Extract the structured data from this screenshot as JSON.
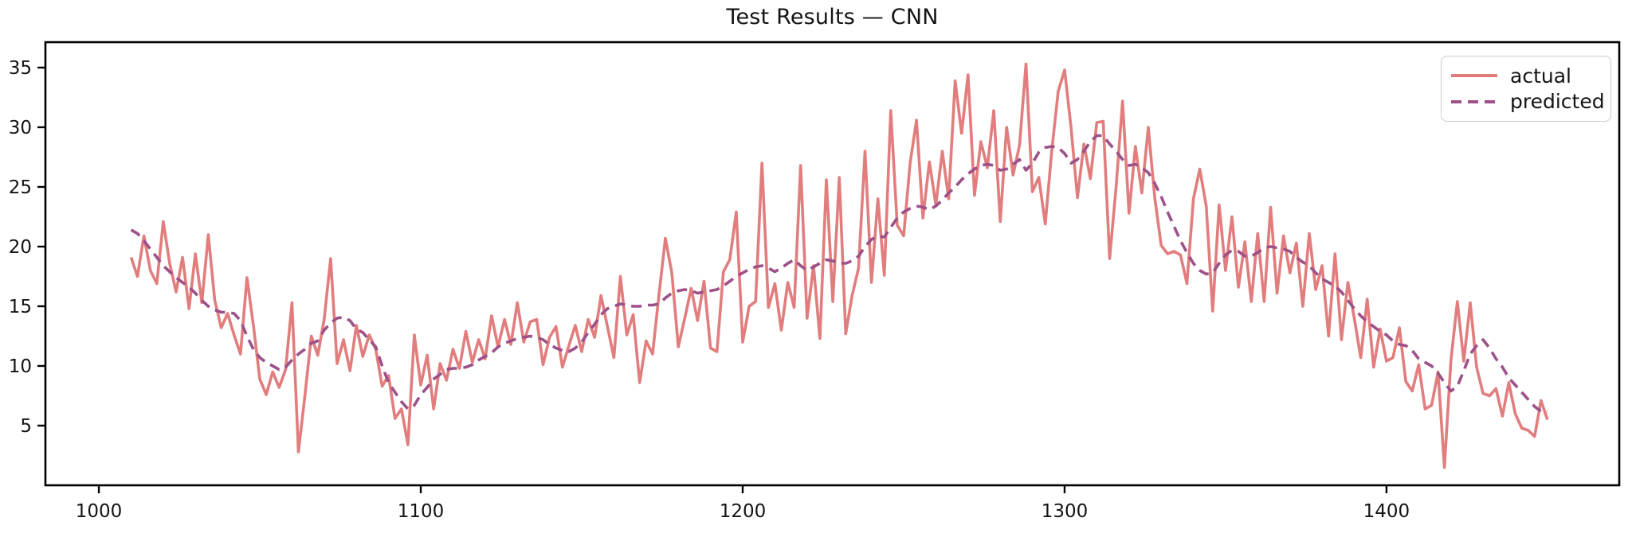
{
  "figure": {
    "title": "Test Results — CNN"
  },
  "legend": {
    "entries": [
      {
        "label": "actual"
      },
      {
        "label": "predicted"
      }
    ]
  },
  "chart_data": {
    "type": "line",
    "title": "Test Results — CNN",
    "xlabel": "",
    "ylabel": "",
    "grid": false,
    "legend_position": "upper right",
    "xlim": [
      983.4,
      1472.3
    ],
    "ylim": [
      0,
      37.13
    ],
    "x_ticks": [
      1000,
      1100,
      1200,
      1300,
      1400
    ],
    "y_ticks": [
      5,
      10,
      15,
      20,
      25,
      30,
      35
    ],
    "x_start": 1010,
    "x_step": 2,
    "series": [
      {
        "name": "actual",
        "color": "#e27d7e",
        "style": "solid",
        "values": [
          19.1,
          17.5,
          20.9,
          18.0,
          16.9,
          22.1,
          18.6,
          16.2,
          19.1,
          14.8,
          19.4,
          15.3,
          21.0,
          15.5,
          13.2,
          14.4,
          12.6,
          11.0,
          17.4,
          13.4,
          8.9,
          7.6,
          9.5,
          8.2,
          9.7,
          15.3,
          2.8,
          7.5,
          12.5,
          10.9,
          13.9,
          19.0,
          10.2,
          12.2,
          9.6,
          13.4,
          10.8,
          12.6,
          11.4,
          8.3,
          9.2,
          5.6,
          6.4,
          3.4,
          12.6,
          8.4,
          10.9,
          6.4,
          10.2,
          8.8,
          11.4,
          9.8,
          12.9,
          10.3,
          12.2,
          10.6,
          14.2,
          11.6,
          13.9,
          11.8,
          15.3,
          12.0,
          13.7,
          13.9,
          10.1,
          12.4,
          13.3,
          9.9,
          11.7,
          13.4,
          11.2,
          13.9,
          12.4,
          15.9,
          13.3,
          10.7,
          17.5,
          12.6,
          14.3,
          8.6,
          12.1,
          11.0,
          16.0,
          20.7,
          17.8,
          11.6,
          14.0,
          16.5,
          13.8,
          17.1,
          11.5,
          11.2,
          17.9,
          18.9,
          22.9,
          12.0,
          15.0,
          15.4,
          27.0,
          14.9,
          16.9,
          13.0,
          17.0,
          14.9,
          26.8,
          14.0,
          18.4,
          12.3,
          25.6,
          15.4,
          25.8,
          12.7,
          15.9,
          18.2,
          28.0,
          17.0,
          24.0,
          17.6,
          31.4,
          21.8,
          20.9,
          27.0,
          30.6,
          22.4,
          27.1,
          23.5,
          28.0,
          24.0,
          33.9,
          29.5,
          34.4,
          24.3,
          28.8,
          26.6,
          31.4,
          22.1,
          30.0,
          26.0,
          28.5,
          35.3,
          24.6,
          25.8,
          21.9,
          28.0,
          33.0,
          34.8,
          30.0,
          24.1,
          28.6,
          25.7,
          30.4,
          30.5,
          19.0,
          25.0,
          32.2,
          22.8,
          28.4,
          24.5,
          30.0,
          24.1,
          20.1,
          19.4,
          19.6,
          19.3,
          16.9,
          24.0,
          26.5,
          23.4,
          14.6,
          23.5,
          18.0,
          22.5,
          16.6,
          20.4,
          15.4,
          21.1,
          15.4,
          23.3,
          16.1,
          20.9,
          17.8,
          20.3,
          15.0,
          21.1,
          16.4,
          18.4,
          12.5,
          19.4,
          12.2,
          17.0,
          14.0,
          10.7,
          15.6,
          9.9,
          13.1,
          10.4,
          10.7,
          13.2,
          8.7,
          7.9,
          10.1,
          6.4,
          6.7,
          9.5,
          1.5,
          10.4,
          15.4,
          10.4,
          15.3,
          9.9,
          7.7,
          7.5,
          8.1,
          5.8,
          8.6,
          6.0,
          4.8,
          4.6,
          4.1,
          7.1,
          5.5
        ]
      },
      {
        "name": "predicted",
        "color": "#9d5189",
        "style": "dashed",
        "values": [
          21.4,
          21.1,
          20.5,
          19.8,
          19.1,
          18.4,
          17.9,
          17.4,
          17.0,
          16.6,
          16.1,
          15.5,
          15.0,
          14.7,
          14.5,
          14.5,
          14.4,
          13.8,
          12.5,
          11.4,
          10.7,
          10.3,
          10.0,
          9.7,
          9.9,
          10.5,
          11.0,
          11.4,
          11.9,
          12.1,
          13.0,
          13.6,
          14.0,
          14.1,
          13.8,
          13.1,
          12.8,
          12.2,
          11.6,
          10.0,
          8.6,
          7.8,
          7.0,
          6.4,
          6.7,
          7.6,
          8.2,
          8.9,
          9.3,
          9.7,
          9.8,
          9.8,
          9.9,
          10.1,
          10.5,
          10.8,
          11.1,
          11.6,
          11.9,
          12.1,
          12.3,
          12.4,
          12.5,
          12.4,
          12.2,
          11.8,
          11.5,
          11.3,
          11.2,
          11.5,
          12.0,
          12.8,
          13.5,
          14.3,
          14.8,
          15.0,
          15.2,
          15.1,
          15.0,
          15.0,
          15.1,
          15.1,
          15.2,
          15.7,
          16.1,
          16.3,
          16.4,
          16.3,
          16.1,
          16.2,
          16.3,
          16.4,
          16.7,
          17.1,
          17.5,
          17.8,
          18.1,
          18.3,
          18.4,
          18.2,
          17.9,
          18.2,
          18.6,
          18.9,
          18.4,
          18.0,
          18.3,
          18.6,
          18.9,
          18.8,
          18.6,
          18.6,
          18.8,
          19.2,
          20.0,
          20.6,
          20.9,
          20.8,
          21.6,
          22.4,
          22.9,
          23.2,
          23.4,
          23.3,
          23.1,
          23.4,
          23.9,
          24.5,
          25.0,
          25.6,
          26.1,
          26.5,
          26.8,
          26.9,
          26.8,
          26.4,
          26.5,
          26.9,
          27.3,
          26.4,
          27.0,
          27.9,
          28.3,
          28.4,
          28.3,
          27.8,
          27.0,
          27.3,
          28.0,
          28.8,
          29.3,
          29.3,
          28.6,
          28.0,
          27.3,
          26.8,
          26.9,
          26.6,
          26.2,
          25.3,
          24.2,
          22.9,
          21.7,
          20.5,
          19.5,
          18.6,
          18.0,
          17.7,
          17.8,
          18.6,
          19.3,
          19.7,
          19.6,
          19.2,
          19.2,
          19.5,
          19.9,
          20.0,
          19.9,
          19.8,
          19.6,
          19.1,
          18.7,
          18.4,
          17.8,
          17.3,
          17.0,
          16.7,
          16.2,
          15.5,
          14.8,
          14.2,
          13.7,
          13.3,
          12.9,
          12.6,
          12.1,
          11.8,
          11.7,
          11.3,
          10.6,
          10.3,
          10.0,
          9.4,
          8.6,
          7.9,
          8.3,
          9.6,
          11.0,
          11.7,
          12.2,
          11.5,
          10.6,
          9.9,
          9.0,
          8.4,
          7.8,
          7.2,
          6.6,
          6.2,
          6.2
        ]
      }
    ]
  }
}
